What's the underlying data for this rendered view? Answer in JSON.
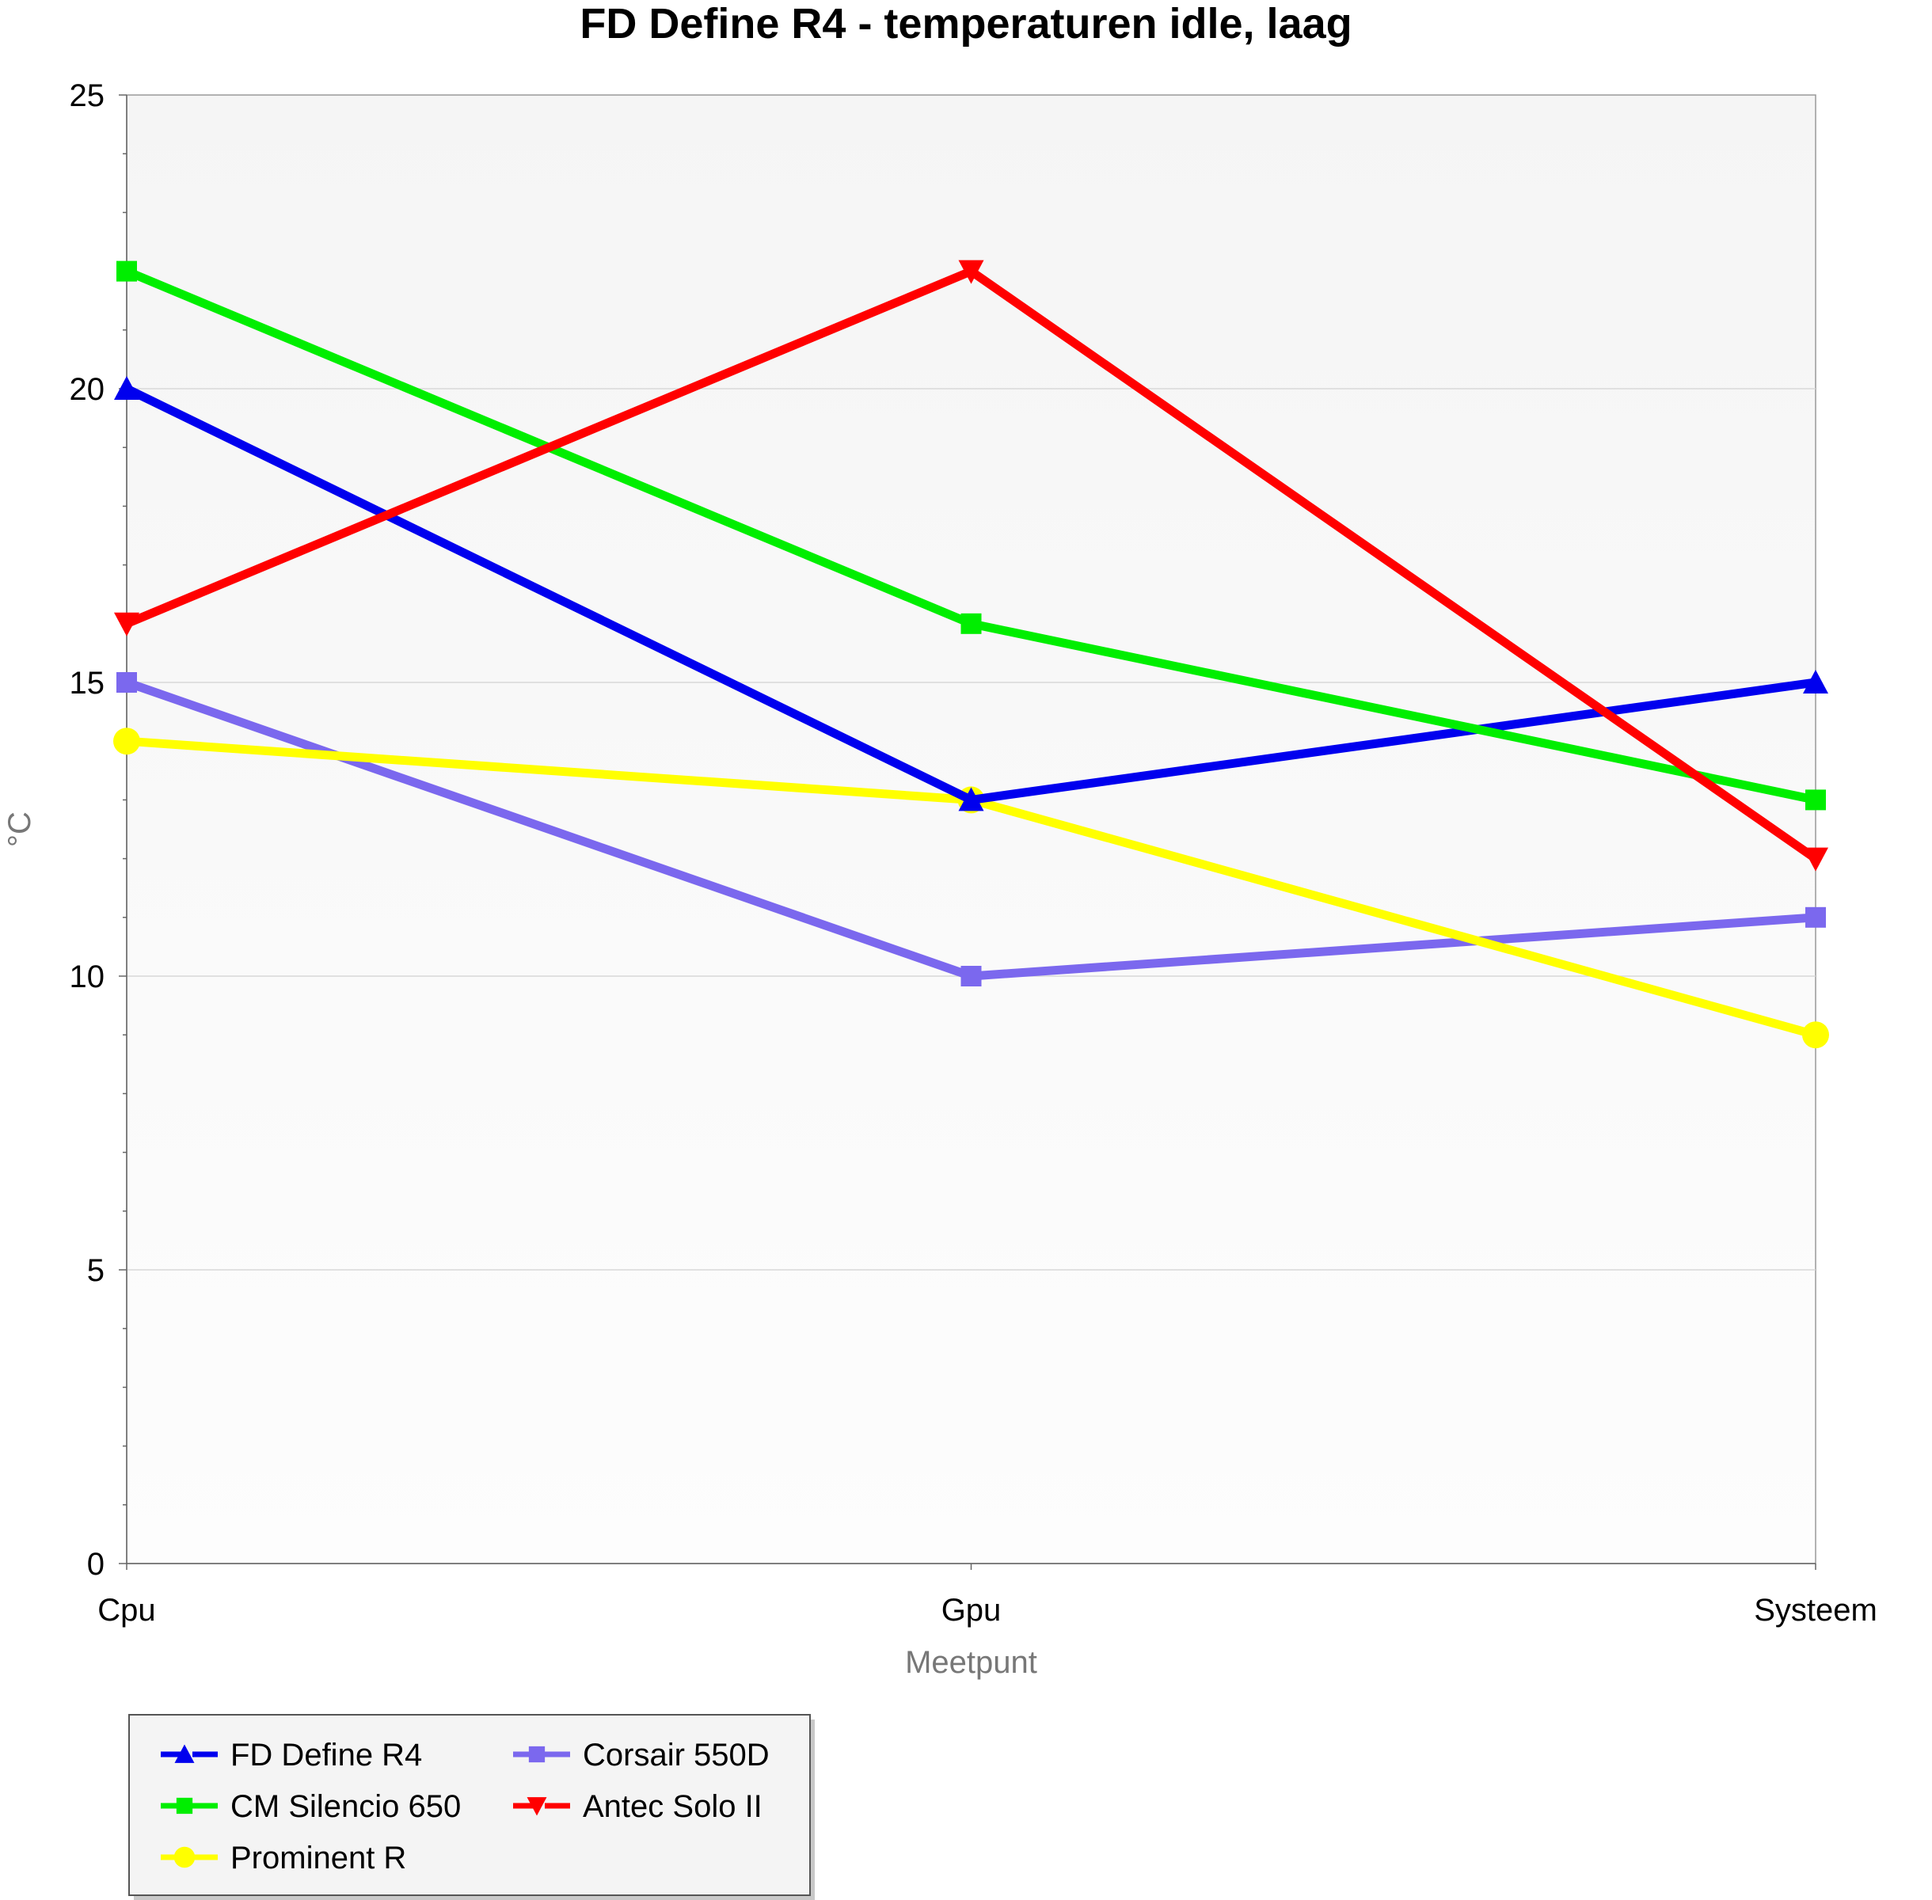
{
  "chart_data": {
    "type": "line",
    "title": "FD Define R4 -  temperaturen idle, laag",
    "xlabel": "Meetpunt",
    "ylabel": "°C",
    "categories": [
      "Cpu",
      "Gpu",
      "Systeem"
    ],
    "ylim": [
      0,
      25
    ],
    "yticks": [
      0,
      5,
      10,
      15,
      20,
      25
    ],
    "grid": true,
    "legend_position": "bottom-left",
    "series": [
      {
        "name": "FD Define R4",
        "values": [
          20,
          13,
          15
        ],
        "color": "#0000ee",
        "marker": "triangle-up"
      },
      {
        "name": "CM Silencio 650",
        "values": [
          22,
          16,
          13
        ],
        "color": "#00ee00",
        "marker": "square"
      },
      {
        "name": "Prominent R",
        "values": [
          14,
          13,
          9
        ],
        "color": "#ffff00",
        "marker": "circle"
      },
      {
        "name": "Corsair 550D",
        "values": [
          15,
          10,
          11
        ],
        "color": "#7b68ee",
        "marker": "square"
      },
      {
        "name": "Antec Solo II",
        "values": [
          16,
          22,
          12
        ],
        "color": "#ff0000",
        "marker": "triangle-down"
      }
    ]
  }
}
